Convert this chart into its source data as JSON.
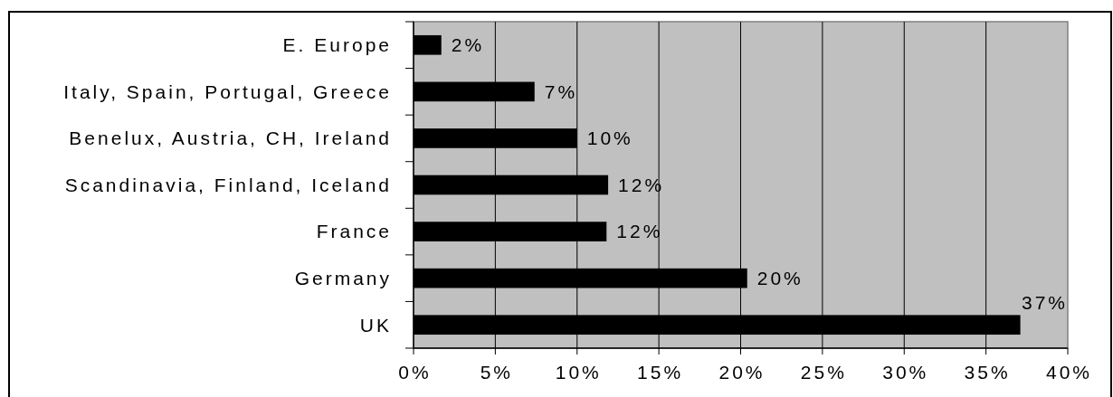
{
  "chart_data": {
    "type": "bar",
    "orientation": "horizontal",
    "categories": [
      "E. Europe",
      "Italy, Spain, Portugal, Greece",
      "Benelux, Austria, CH, Ireland",
      "Scandinavia, Finland, Iceland",
      "France",
      "Germany",
      "UK"
    ],
    "values": [
      1.7,
      7.4,
      10,
      11.9,
      11.8,
      20.4,
      37.1
    ],
    "value_labels": [
      "2%",
      "7%",
      "10%",
      "12%",
      "12%",
      "20%",
      "37%"
    ],
    "color": "#000000",
    "xlim": [
      0,
      40
    ],
    "xticks": [
      {
        "value": 0,
        "label": "0%"
      },
      {
        "value": 5,
        "label": "5%"
      },
      {
        "value": 10,
        "label": "10%"
      },
      {
        "value": 15,
        "label": "15%"
      },
      {
        "value": 20,
        "label": "20%"
      },
      {
        "value": 25,
        "label": "25%"
      },
      {
        "value": 30,
        "label": "30%"
      },
      {
        "value": 35,
        "label": "35%"
      },
      {
        "value": 40,
        "label": "40%"
      }
    ],
    "grid": "x"
  }
}
